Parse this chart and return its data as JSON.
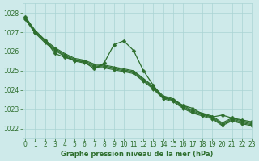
{
  "title": "Graphe pression niveau de la mer (hPa)",
  "background_color": "#ceeaea",
  "grid_color": "#aad4d4",
  "line_color": "#2d6e2d",
  "ylim": [
    1021.5,
    1028.5
  ],
  "xlim": [
    -0.3,
    23
  ],
  "yticks": [
    1022,
    1023,
    1024,
    1025,
    1026,
    1027,
    1028
  ],
  "xticks": [
    0,
    1,
    2,
    3,
    4,
    5,
    6,
    7,
    8,
    9,
    10,
    11,
    12,
    13,
    14,
    15,
    16,
    17,
    18,
    19,
    20,
    21,
    22,
    23
  ],
  "series": [
    {
      "x": [
        0,
        1,
        2,
        3,
        4,
        5,
        6,
        7,
        8,
        9,
        10,
        11,
        12,
        13,
        14,
        15,
        16,
        17,
        18,
        19,
        20,
        21,
        22,
        23
      ],
      "y": [
        1027.8,
        1027.1,
        1026.6,
        1026.2,
        1025.9,
        1025.65,
        1025.55,
        1025.35,
        1025.3,
        1025.2,
        1025.1,
        1025.0,
        1024.6,
        1024.2,
        1023.7,
        1023.55,
        1023.2,
        1022.95,
        1022.8,
        1022.65,
        1022.3,
        1022.55,
        1022.4,
        1022.3
      ],
      "marker": "None",
      "markersize": 0,
      "linewidth": 0.8
    },
    {
      "x": [
        0,
        1,
        2,
        3,
        4,
        5,
        6,
        7,
        8,
        9,
        10,
        11,
        12,
        13,
        14,
        15,
        16,
        17,
        18,
        19,
        20,
        21,
        22,
        23
      ],
      "y": [
        1027.75,
        1027.05,
        1026.55,
        1026.15,
        1025.85,
        1025.6,
        1025.5,
        1025.3,
        1025.25,
        1025.15,
        1025.05,
        1024.95,
        1024.55,
        1024.15,
        1023.65,
        1023.5,
        1023.15,
        1022.9,
        1022.75,
        1022.6,
        1022.25,
        1022.5,
        1022.35,
        1022.25
      ],
      "marker": "D",
      "markersize": 2.0,
      "linewidth": 0.8
    },
    {
      "x": [
        0,
        1,
        2,
        3,
        4,
        5,
        6,
        7,
        8,
        9,
        10,
        11,
        12,
        13,
        14,
        15,
        16,
        17,
        18,
        19,
        20,
        21,
        22,
        23
      ],
      "y": [
        1027.7,
        1027.0,
        1026.5,
        1026.1,
        1025.8,
        1025.55,
        1025.45,
        1025.25,
        1025.2,
        1025.1,
        1025.0,
        1024.9,
        1024.5,
        1024.1,
        1023.6,
        1023.45,
        1023.1,
        1022.85,
        1022.7,
        1022.55,
        1022.2,
        1022.45,
        1022.3,
        1022.2
      ],
      "marker": "D",
      "markersize": 2.0,
      "linewidth": 0.8
    },
    {
      "x": [
        0,
        1,
        2,
        3,
        4,
        5,
        6,
        7,
        8,
        9,
        10,
        11,
        12,
        13,
        14,
        15,
        16,
        17,
        18,
        19,
        20,
        21,
        22,
        23
      ],
      "y": [
        1027.65,
        1026.95,
        1026.45,
        1026.05,
        1025.75,
        1025.5,
        1025.4,
        1025.2,
        1025.15,
        1025.05,
        1024.95,
        1024.85,
        1024.45,
        1024.05,
        1023.55,
        1023.4,
        1023.05,
        1022.8,
        1022.65,
        1022.5,
        1022.15,
        1022.4,
        1022.25,
        1022.15
      ],
      "marker": "D",
      "markersize": 2.0,
      "linewidth": 0.8
    },
    {
      "x": [
        0,
        1,
        2,
        3,
        4,
        5,
        6,
        7,
        8,
        9,
        10,
        11,
        12,
        13,
        14,
        15,
        16,
        17,
        18,
        19,
        20,
        21,
        22,
        23
      ],
      "y": [
        1027.8,
        1027.0,
        1026.6,
        1025.9,
        1025.7,
        1025.55,
        1025.45,
        1025.1,
        1025.4,
        1026.35,
        1026.55,
        1026.05,
        1025.0,
        1024.25,
        1023.6,
        1023.5,
        1023.2,
        1023.05,
        1022.75,
        1022.6,
        1022.7,
        1022.55,
        1022.45,
        1022.35
      ],
      "marker": "D",
      "markersize": 2.5,
      "linewidth": 0.9
    }
  ],
  "ylabel_fontsize": 5.5,
  "xlabel_fontsize": 6.0
}
